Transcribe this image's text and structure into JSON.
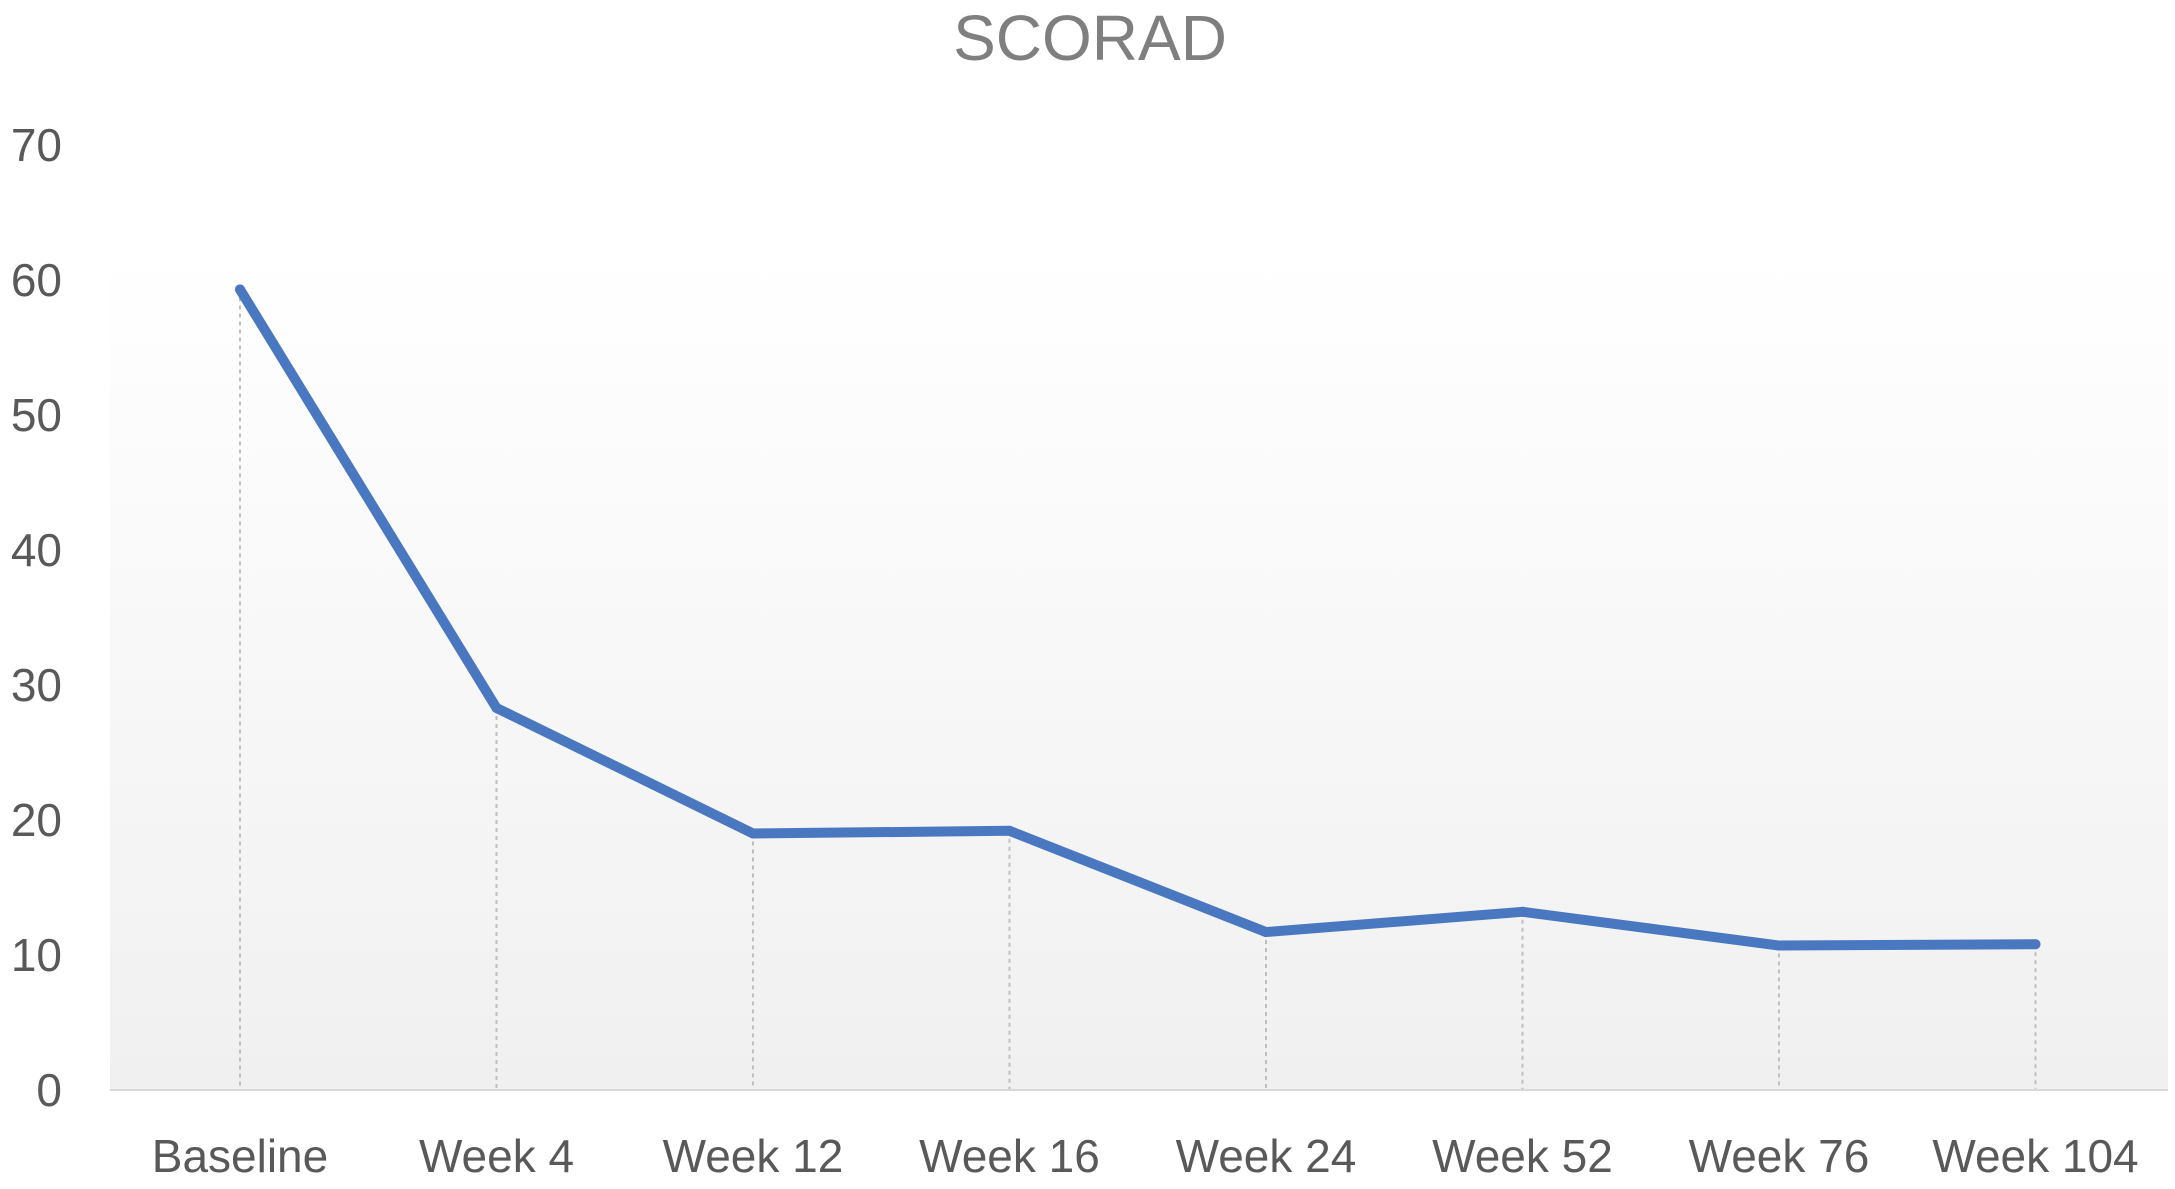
{
  "chart_data": {
    "type": "line",
    "title": "SCORAD",
    "xlabel": "",
    "ylabel": "",
    "categories": [
      "Baseline",
      "Week 4",
      "Week 12",
      "Week 16",
      "Week 24",
      "Week 52",
      "Week 76",
      "Week 104"
    ],
    "series": [
      {
        "values": [
          59.3,
          28.3,
          19.0,
          19.2,
          11.7,
          13.2,
          10.7,
          10.8
        ]
      }
    ],
    "ylim": [
      0,
      70
    ],
    "yticks": [
      "0",
      "10",
      "20",
      "30",
      "40",
      "50",
      "60",
      "70"
    ],
    "grid": false,
    "drop_lines": true,
    "legend": "none",
    "colors": {
      "line": "#4a78c0",
      "text": "#595959",
      "title": "#7f7f7f",
      "axis": "#d9d9d9",
      "drop_line": "#bfbfbf",
      "plot_bg_top": "#ffffff",
      "plot_bg_bottom": "#f0f0f0"
    }
  }
}
